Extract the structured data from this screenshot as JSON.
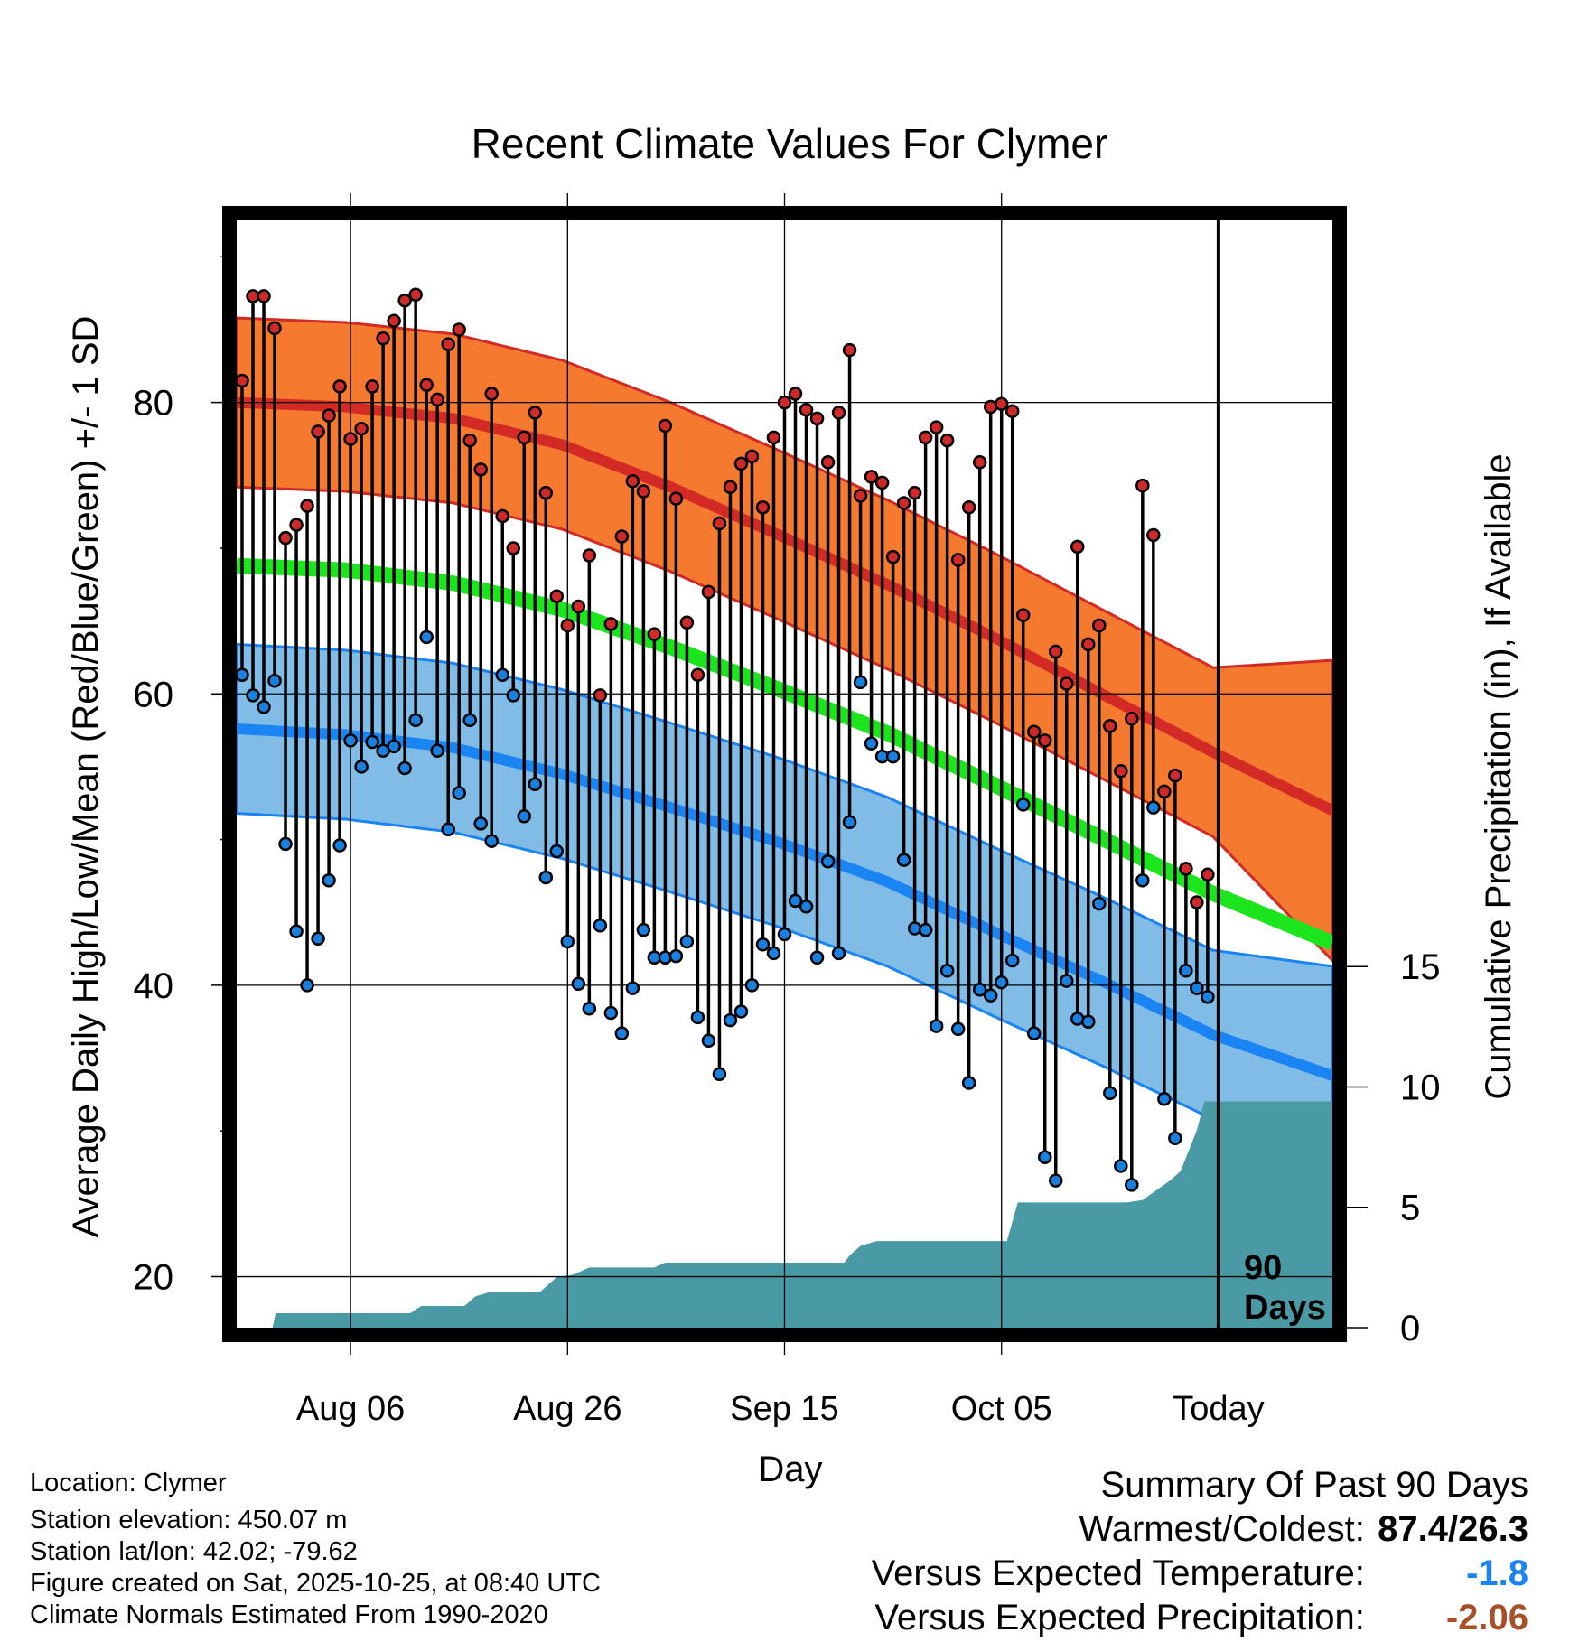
{
  "chart_data": {
    "type": "line",
    "title": "Recent Climate Values For Clymer",
    "xlabel": "Day",
    "ylabel": "Average Daily High/Low/Mean (Red/Blue/Green) +/- 1 SD",
    "y2label": "Cumulative Precipitation (in), If Available",
    "ylim": [
      16.5,
      92.5
    ],
    "y2lim": [
      0,
      46
    ],
    "xlim": [
      0,
      101
    ],
    "ytick_values": [
      20,
      40,
      60,
      80
    ],
    "ytick_labels": [
      "20",
      "40",
      "60",
      "80"
    ],
    "y2tick_values": [
      0,
      5,
      10,
      15
    ],
    "y2tick_labels": [
      "0",
      "5",
      "10",
      "15"
    ],
    "xtick_positions": [
      10.5,
      30.5,
      50.5,
      70.5,
      90.5
    ],
    "xtick_labels": [
      "Aug 06",
      "Aug 26",
      "Sep 15",
      "Oct 05",
      "Today"
    ],
    "today_index": 90.5,
    "window_label": [
      "90",
      "Days"
    ],
    "normal_day": [
      0,
      10,
      20,
      30,
      40,
      50,
      60,
      70,
      80,
      90,
      101
    ],
    "normal_high": [
      80.0,
      79.7,
      78.9,
      77.1,
      74.2,
      70.9,
      67.5,
      63.8,
      59.9,
      56.0,
      52.0
    ],
    "normal_high_sd": [
      5.8,
      5.8,
      5.8,
      5.8,
      5.8,
      5.8,
      5.8,
      5.8,
      5.8,
      5.8,
      10.3
    ],
    "normal_low": [
      57.6,
      57.2,
      56.3,
      54.5,
      52.2,
      49.8,
      47.1,
      43.6,
      40.2,
      36.6,
      33.8
    ],
    "normal_low_sd": [
      5.8,
      5.8,
      5.8,
      5.8,
      5.8,
      5.8,
      5.8,
      5.8,
      5.8,
      5.8,
      7.5
    ],
    "normal_mean": [
      68.8,
      68.5,
      67.6,
      65.8,
      63.2,
      60.3,
      57.3,
      53.7,
      50.0,
      46.3,
      42.9
    ],
    "series": [
      {
        "name": "Daily High",
        "values": [
          81.5,
          87.3,
          87.3,
          85.1,
          70.7,
          71.6,
          72.9,
          78.0,
          79.1,
          81.1,
          77.5,
          78.2,
          81.1,
          84.4,
          85.6,
          87.0,
          87.4,
          81.2,
          80.2,
          84.0,
          85.0,
          77.4,
          75.4,
          80.6,
          72.2,
          70.0,
          77.6,
          79.3,
          73.8,
          66.7,
          64.7,
          66.0,
          69.5,
          59.9,
          64.8,
          70.8,
          74.6,
          73.9,
          64.1,
          78.4,
          73.4,
          64.9,
          61.3,
          67.0,
          71.7,
          74.2,
          75.8,
          76.3,
          72.8,
          77.6,
          80.0,
          80.6,
          79.5,
          78.9,
          75.9,
          79.3,
          83.6,
          73.6,
          74.9,
          74.5,
          69.4,
          73.1,
          73.8,
          77.6,
          78.3,
          77.4,
          69.2,
          72.8,
          75.9,
          79.7,
          79.9,
          79.4,
          65.4,
          57.4,
          56.8,
          62.9,
          60.7,
          70.1,
          63.4,
          64.7,
          57.8,
          54.7,
          58.3,
          74.3,
          70.9,
          53.3,
          54.4,
          48.0,
          45.7,
          47.6
        ]
      },
      {
        "name": "Daily Low",
        "values": [
          61.3,
          59.9,
          59.1,
          60.9,
          49.7,
          43.7,
          40.0,
          43.2,
          47.2,
          49.6,
          56.8,
          55.0,
          56.7,
          56.1,
          56.4,
          54.9,
          58.2,
          63.9,
          56.1,
          50.7,
          53.2,
          58.2,
          51.1,
          49.9,
          61.3,
          59.9,
          51.6,
          53.8,
          47.4,
          49.2,
          43.0,
          40.1,
          38.4,
          44.1,
          38.1,
          36.7,
          39.8,
          43.8,
          41.9,
          41.9,
          42.0,
          43.0,
          37.8,
          36.2,
          33.9,
          37.6,
          38.2,
          40.0,
          42.8,
          42.2,
          43.5,
          45.8,
          45.4,
          41.9,
          48.5,
          42.2,
          51.2,
          60.8,
          56.6,
          55.7,
          55.7,
          48.6,
          43.9,
          43.8,
          37.2,
          41.0,
          37.0,
          33.3,
          39.7,
          39.3,
          40.2,
          41.7,
          52.4,
          36.7,
          28.2,
          26.6,
          40.3,
          37.7,
          37.5,
          45.6,
          32.6,
          27.6,
          26.3,
          47.2,
          52.2,
          32.2,
          29.5,
          41.0,
          39.8,
          39.2
        ]
      }
    ],
    "precip_day": [
      0,
      3.3,
      3.6,
      16,
      17,
      21,
      22,
      23.5,
      28,
      29,
      29.5,
      31,
      32.5,
      38.5,
      39.5,
      56,
      56.5,
      57.5,
      59,
      71,
      72,
      82,
      83.5,
      86,
      87,
      88.5,
      89.2,
      101
    ],
    "precip_cum": [
      0,
      0,
      0.6,
      0.6,
      0.9,
      0.9,
      1.3,
      1.5,
      1.5,
      1.9,
      2.1,
      2.2,
      2.5,
      2.5,
      2.7,
      2.7,
      3.0,
      3.4,
      3.6,
      3.6,
      5.2,
      5.2,
      5.3,
      6.1,
      6.5,
      8.2,
      9.4,
      9.4
    ]
  },
  "colors": {
    "high_band": "#f57a30",
    "high_line": "#d32a26",
    "low_band": "#80bce6",
    "low_line": "#1a85f2",
    "mean_band": "#1de51d",
    "precip": "#4a9aa6",
    "high_dot": "#cf2a2a",
    "low_dot": "#1a80e0",
    "departure_temp": "#1a85f2",
    "departure_precip": "#a65128"
  },
  "info": {
    "location": "Location: Clymer",
    "elevation": "Station elevation: 450.07 m",
    "latlon": "Station lat/lon: 42.02; -79.62",
    "created": "Figure created on Sat, 2025-10-25, at 08:40 UTC",
    "normals": "Climate Normals Estimated From 1990-2020"
  },
  "summary": {
    "heading": "Summary Of Past 90 Days",
    "warm_cold_label": "Warmest/Coldest:",
    "warm_cold_value": "87.4/26.3",
    "temp_label": "Versus Expected Temperature:",
    "temp_value": "-1.8",
    "precip_label": "Versus Expected Precipitation:",
    "precip_value": "-2.06"
  }
}
